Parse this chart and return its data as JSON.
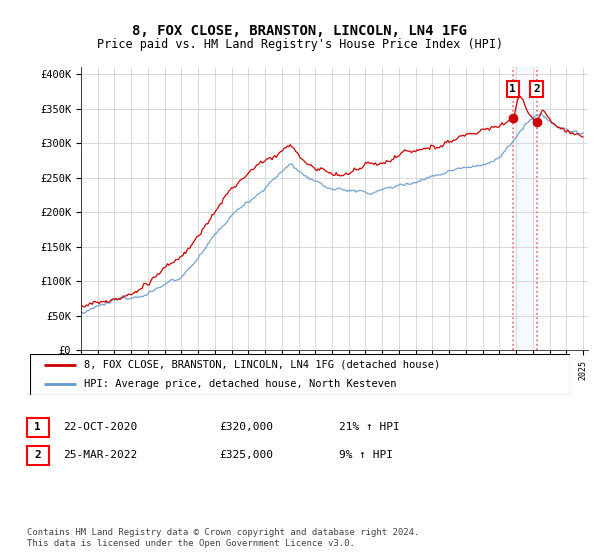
{
  "title": "8, FOX CLOSE, BRANSTON, LINCOLN, LN4 1FG",
  "subtitle": "Price paid vs. HM Land Registry's House Price Index (HPI)",
  "y_ticks": [
    0,
    50000,
    100000,
    150000,
    200000,
    250000,
    300000,
    350000,
    400000
  ],
  "y_labels": [
    "£0",
    "£50K",
    "£100K",
    "£150K",
    "£200K",
    "£250K",
    "£300K",
    "£350K",
    "£400K"
  ],
  "sale1_date": "22-OCT-2020",
  "sale1_price": 320000,
  "sale1_price_str": "£320,000",
  "sale1_pct": "21%",
  "sale1_x": 2020.8,
  "sale2_date": "25-MAR-2022",
  "sale2_price": 325000,
  "sale2_price_str": "£325,000",
  "sale2_pct": "9%",
  "sale2_x": 2022.23,
  "legend_label1": "8, FOX CLOSE, BRANSTON, LINCOLN, LN4 1FG (detached house)",
  "legend_label2": "HPI: Average price, detached house, North Kesteven",
  "footer": "Contains HM Land Registry data © Crown copyright and database right 2024.\nThis data is licensed under the Open Government Licence v3.0.",
  "line1_color": "#cc0000",
  "line2_color": "#6699cc",
  "background_color": "#ffffff",
  "grid_color": "#cccccc",
  "title_fontsize": 10,
  "subtitle_fontsize": 8.5,
  "axis_fontsize": 7.5,
  "legend_fontsize": 7.5,
  "table_fontsize": 8,
  "footer_fontsize": 6.5
}
